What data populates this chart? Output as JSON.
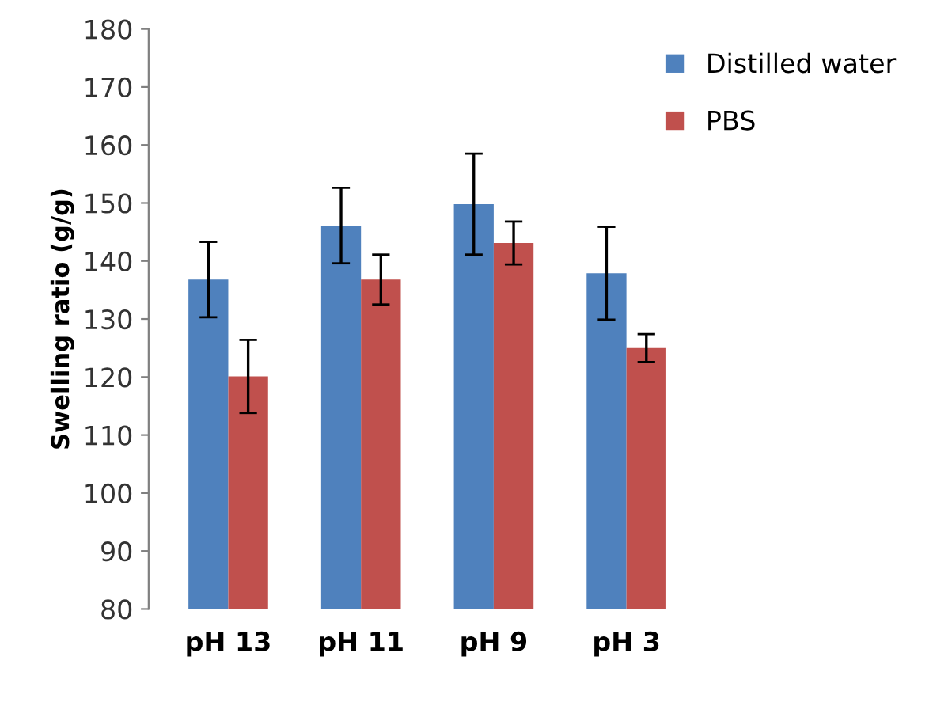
{
  "chart_data": {
    "type": "bar",
    "ylabel": "Swelling ratio (g/g)",
    "categories": [
      "pH 13",
      "pH 11",
      "pH 9",
      "pH 3"
    ],
    "series": [
      {
        "name": "Distilled water",
        "color": "#4f81bd",
        "values": [
          136.8,
          146.1,
          149.8,
          137.9
        ],
        "errors": [
          6.5,
          6.5,
          8.7,
          8
        ]
      },
      {
        "name": "PBS",
        "color": "#c0504d",
        "values": [
          120.1,
          136.8,
          143.1,
          125
        ],
        "errors": [
          6.3,
          4.3,
          3.7,
          2.4
        ]
      }
    ],
    "ylim": [
      80,
      180
    ],
    "yticks": [
      80,
      90,
      100,
      110,
      120,
      130,
      140,
      150,
      160,
      170,
      180
    ],
    "grid": false,
    "legend": "top right"
  }
}
